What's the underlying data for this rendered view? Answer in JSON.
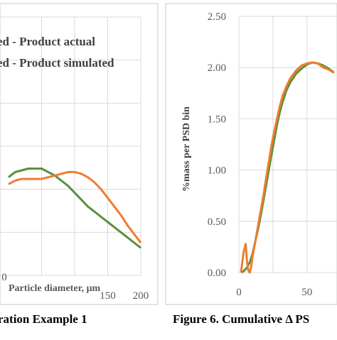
{
  "chart_data": [
    {
      "type": "line",
      "title": "",
      "caption": "ration Example 1",
      "xlabel": "Particle diameter, µm",
      "ylabel": "",
      "xlim": [
        0,
        200
      ],
      "x_ticks": [
        "150",
        "200"
      ],
      "x_ticks_partial": [
        "0"
      ],
      "grid": true,
      "legend_position": "top-left (clipped)",
      "legend": [
        "ed - Product actual",
        "ed - Product simulated"
      ],
      "series": [
        {
          "name": "ed - Product actual",
          "color": "#5b8f3a",
          "points": [
            [
              0,
              0.57
            ],
            [
              10,
              0.6
            ],
            [
              20,
              0.61
            ],
            [
              30,
              0.62
            ],
            [
              40,
              0.62
            ],
            [
              50,
              0.62
            ],
            [
              60,
              0.6
            ],
            [
              70,
              0.58
            ],
            [
              80,
              0.55
            ],
            [
              90,
              0.52
            ],
            [
              100,
              0.48
            ],
            [
              110,
              0.44
            ],
            [
              120,
              0.4
            ],
            [
              130,
              0.37
            ],
            [
              140,
              0.34
            ],
            [
              150,
              0.31
            ],
            [
              160,
              0.28
            ],
            [
              170,
              0.25
            ],
            [
              180,
              0.22
            ],
            [
              190,
              0.19
            ],
            [
              200,
              0.16
            ]
          ]
        },
        {
          "name": "ed - Product simulated",
          "color": "#ed7d31",
          "points": [
            [
              0,
              0.53
            ],
            [
              10,
              0.55
            ],
            [
              20,
              0.56
            ],
            [
              30,
              0.56
            ],
            [
              40,
              0.56
            ],
            [
              50,
              0.56
            ],
            [
              60,
              0.57
            ],
            [
              70,
              0.58
            ],
            [
              80,
              0.59
            ],
            [
              90,
              0.6
            ],
            [
              100,
              0.6
            ],
            [
              110,
              0.59
            ],
            [
              120,
              0.57
            ],
            [
              130,
              0.54
            ],
            [
              140,
              0.5
            ],
            [
              150,
              0.45
            ],
            [
              160,
              0.4
            ],
            [
              170,
              0.35
            ],
            [
              180,
              0.29
            ],
            [
              190,
              0.24
            ],
            [
              200,
              0.19
            ]
          ]
        }
      ]
    },
    {
      "type": "line",
      "title": "",
      "caption": "Figure 6. Cumulative Δ PS",
      "xlabel": "",
      "ylabel": "%mass per PSD bin",
      "xlim": [
        0,
        70
      ],
      "ylim": [
        0,
        2.5
      ],
      "x_ticks": [
        "0",
        "50"
      ],
      "y_ticks": [
        "0.00",
        "0.50",
        "1.00",
        "1.50",
        "2.00",
        "2.50"
      ],
      "grid": true,
      "series": [
        {
          "name": "",
          "color": "#5b8f3a",
          "points": [
            [
              2,
              0.0
            ],
            [
              4,
              0.02
            ],
            [
              6,
              0.05
            ],
            [
              8,
              0.1
            ],
            [
              10,
              0.18
            ],
            [
              12,
              0.3
            ],
            [
              14,
              0.42
            ],
            [
              16,
              0.55
            ],
            [
              18,
              0.7
            ],
            [
              20,
              0.85
            ],
            [
              22,
              1.0
            ],
            [
              24,
              1.15
            ],
            [
              26,
              1.3
            ],
            [
              28,
              1.44
            ],
            [
              30,
              1.56
            ],
            [
              32,
              1.66
            ],
            [
              35,
              1.78
            ],
            [
              38,
              1.86
            ],
            [
              42,
              1.94
            ],
            [
              46,
              1.99
            ],
            [
              50,
              2.03
            ],
            [
              54,
              2.05
            ],
            [
              58,
              2.04
            ],
            [
              62,
              2.02
            ],
            [
              66,
              1.99
            ],
            [
              70,
              1.95
            ]
          ]
        },
        {
          "name": "",
          "color": "#ed7d31",
          "points": [
            [
              1.5,
              0.0
            ],
            [
              3.5,
              0.2
            ],
            [
              5,
              0.28
            ],
            [
              6,
              0.1
            ],
            [
              7,
              0.02
            ],
            [
              8,
              0.0
            ],
            [
              9,
              0.05
            ],
            [
              10,
              0.15
            ],
            [
              12,
              0.3
            ],
            [
              14,
              0.45
            ],
            [
              16,
              0.6
            ],
            [
              18,
              0.75
            ],
            [
              20,
              0.92
            ],
            [
              22,
              1.08
            ],
            [
              24,
              1.24
            ],
            [
              26,
              1.38
            ],
            [
              28,
              1.5
            ],
            [
              30,
              1.62
            ],
            [
              32,
              1.72
            ],
            [
              35,
              1.82
            ],
            [
              38,
              1.9
            ],
            [
              42,
              1.97
            ],
            [
              46,
              2.02
            ],
            [
              50,
              2.04
            ],
            [
              54,
              2.05
            ],
            [
              58,
              2.04
            ],
            [
              62,
              2.0
            ],
            [
              66,
              1.98
            ],
            [
              70,
              1.95
            ]
          ]
        }
      ]
    }
  ]
}
